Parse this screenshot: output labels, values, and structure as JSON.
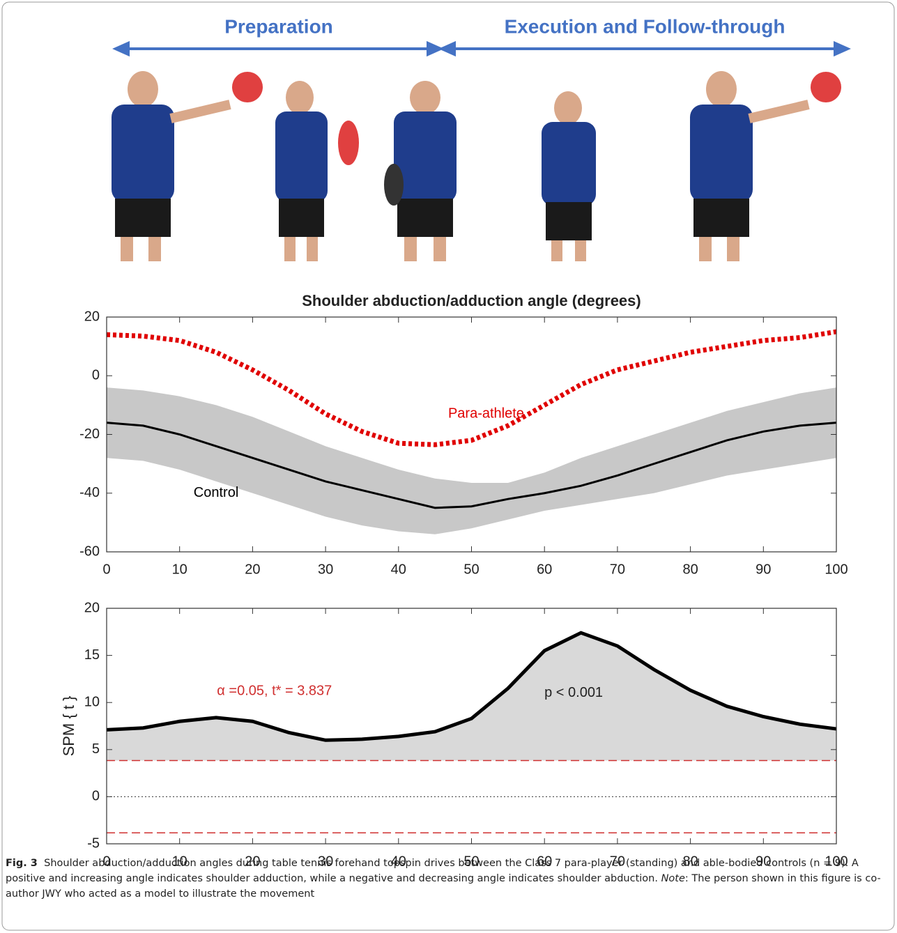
{
  "header": {
    "left": "Preparation",
    "right": "Execution and Follow-through"
  },
  "chart_data": [
    {
      "type": "line",
      "title": "Shoulder abduction/adduction angle (degrees)",
      "x": [
        0,
        5,
        10,
        15,
        20,
        25,
        30,
        35,
        40,
        45,
        50,
        55,
        60,
        65,
        70,
        75,
        80,
        85,
        90,
        95,
        100
      ],
      "series": [
        {
          "name": "Para-athlete",
          "color": "#e00000",
          "style": "dotted",
          "values": [
            14,
            13.5,
            12,
            8,
            2,
            -5,
            -13,
            -19,
            -23,
            -23.5,
            -22,
            -17,
            -10,
            -3,
            2,
            5,
            8,
            10,
            12,
            13,
            15
          ]
        },
        {
          "name": "Control",
          "color": "#000000",
          "style": "solid",
          "values": [
            -16,
            -17,
            -20,
            -24,
            -28,
            -32,
            -36,
            -39,
            -42,
            -45,
            -44.5,
            -42,
            -40,
            -37.5,
            -34,
            -30,
            -26,
            -22,
            -19,
            -17,
            -16
          ]
        }
      ],
      "band": {
        "color": "#c8c8c8",
        "upper": [
          -4,
          -5,
          -7,
          -10,
          -14,
          -19,
          -24,
          -28,
          -32,
          -35,
          -36.5,
          -36.5,
          -33,
          -28,
          -24,
          -20,
          -16,
          -12,
          -9,
          -6,
          -4
        ],
        "lower": [
          -28,
          -29,
          -32,
          -36,
          -40,
          -44,
          -48,
          -51,
          -53,
          -54,
          -52,
          -49,
          -46,
          -44,
          -42,
          -40,
          -37,
          -34,
          -32,
          -30,
          -28
        ]
      },
      "xlim": [
        0,
        100
      ],
      "ylim": [
        -60,
        20
      ],
      "xticks": [
        0,
        10,
        20,
        30,
        40,
        50,
        60,
        70,
        80,
        90,
        100
      ],
      "yticks": [
        -60,
        -40,
        -20,
        0,
        20
      ]
    },
    {
      "type": "spm",
      "ylabel": "SPM { t }",
      "annotations": [
        "α  =0.05,     t* = 3.837",
        "p < 0.001"
      ],
      "x": [
        0,
        5,
        10,
        15,
        20,
        25,
        30,
        35,
        40,
        45,
        50,
        55,
        60,
        65,
        70,
        75,
        80,
        85,
        90,
        95,
        100
      ],
      "values": [
        7.1,
        7.3,
        8,
        8.4,
        8,
        6.8,
        6,
        6.1,
        6.4,
        6.9,
        8.3,
        11.5,
        15.5,
        17.4,
        16,
        13.5,
        11.3,
        9.6,
        8.5,
        7.7,
        7.2
      ],
      "thresholds": [
        3.837,
        -3.837
      ],
      "color": "#000000",
      "fill": "#d9d9d9",
      "threshold_color": "#d03030",
      "xlim": [
        0,
        100
      ],
      "ylim": [
        -5,
        20
      ],
      "xticks": [
        0,
        10,
        20,
        30,
        40,
        50,
        60,
        70,
        80,
        90,
        100
      ],
      "yticks": [
        -5,
        0,
        5,
        10,
        15,
        20
      ]
    }
  ],
  "caption": {
    "label": "Fig. 3",
    "text": "Shoulder abduction/adduction angles during table tennis forehand topspin drives between the Class 7 para-player (standing) and able-bodied controls (n = 9). A positive and increasing angle indicates shoulder adduction, while a negative and decreasing angle indicates shoulder abduction.",
    "note_label": "Note",
    "note_text": ": The person shown in this figure is co-author JWY who acted as a model to illustrate the movement"
  }
}
